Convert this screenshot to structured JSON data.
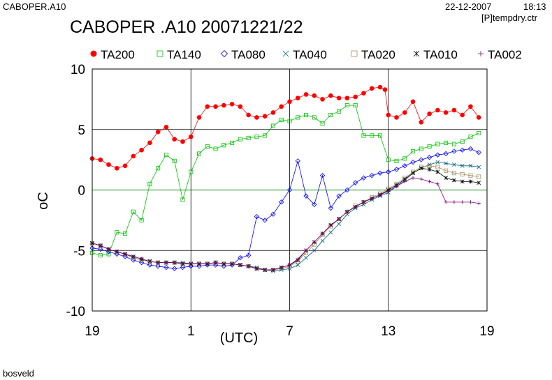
{
  "header": {
    "file": "CABOPER.A10",
    "date": "22-12-2007",
    "time": "18:13",
    "ctr": "[P]tempdry.ctr"
  },
  "footer": {
    "text": "bosveld"
  },
  "chart_data": {
    "type": "line",
    "title": "CABOPER .A10 20071221/22",
    "xlabel": "(UTC)",
    "ylabel": "oC",
    "ylim": [
      -10,
      10
    ],
    "yticks": [
      -10,
      -5,
      0,
      5,
      10
    ],
    "ytick_labels": [
      "-10",
      "-5",
      "0",
      "5",
      "10"
    ],
    "xlim": [
      0,
      24
    ],
    "xticks": [
      0,
      6,
      12,
      18,
      24
    ],
    "xtick_labels": [
      "19",
      "1",
      "7",
      "13",
      "19"
    ],
    "grid": true,
    "zero_line_color": "#008000",
    "legend_position": "top",
    "series": [
      {
        "name": "TA200",
        "color": "#ff0000",
        "marker": "filled-circle",
        "x": [
          0,
          0.5,
          1,
          1.5,
          2,
          2.5,
          3,
          3.5,
          4,
          4.5,
          5,
          5.5,
          6,
          6.5,
          7,
          7.5,
          8,
          8.5,
          9,
          9.5,
          10,
          10.5,
          11,
          11.5,
          12,
          12.5,
          13,
          13.5,
          14,
          14.5,
          15,
          15.5,
          16,
          16.5,
          17,
          17.5,
          17.8,
          18,
          18.5,
          19,
          19.5,
          20,
          20.5,
          21,
          21.5,
          22,
          22.5,
          23,
          23.5
        ],
        "y": [
          2.6,
          2.5,
          2.1,
          1.8,
          2.0,
          2.8,
          3.3,
          3.9,
          4.8,
          5.2,
          4.2,
          4.0,
          4.4,
          6.0,
          6.9,
          6.9,
          7.0,
          7.1,
          6.9,
          6.2,
          6.0,
          6.1,
          6.4,
          6.9,
          7.3,
          7.6,
          7.9,
          7.8,
          7.5,
          7.8,
          7.6,
          7.6,
          7.7,
          8.0,
          8.4,
          8.5,
          8.3,
          6.2,
          6.0,
          6.4,
          7.3,
          5.6,
          6.3,
          6.6,
          6.4,
          6.6,
          6.2,
          6.9,
          6.0
        ]
      },
      {
        "name": "TA140",
        "color": "#00c000",
        "marker": "open-square",
        "x": [
          0,
          0.5,
          1,
          1.5,
          2,
          2.5,
          3,
          3.5,
          4,
          4.5,
          5,
          5.5,
          6,
          6.5,
          7,
          7.5,
          8,
          8.5,
          9,
          9.5,
          10,
          10.5,
          11,
          11.5,
          12,
          12.5,
          13,
          13.5,
          14,
          14.5,
          15,
          15.5,
          16,
          16.5,
          17,
          17.5,
          18,
          18.5,
          19,
          19.5,
          20,
          20.5,
          21,
          21.5,
          22,
          22.5,
          23,
          23.5
        ],
        "y": [
          -5.2,
          -5.4,
          -5.3,
          -3.5,
          -3.6,
          -1.8,
          -2.5,
          0.5,
          1.8,
          2.9,
          2.4,
          -0.8,
          1.5,
          3.0,
          3.6,
          3.4,
          3.7,
          3.9,
          4.2,
          4.3,
          4.4,
          4.5,
          5.3,
          5.8,
          5.7,
          6.0,
          6.2,
          6.0,
          5.5,
          6.2,
          6.5,
          7.0,
          7.0,
          4.5,
          4.5,
          4.5,
          2.5,
          2.4,
          2.6,
          3.2,
          3.4,
          3.6,
          3.8,
          3.9,
          3.8,
          4.0,
          4.4,
          4.7
        ]
      },
      {
        "name": "TA080",
        "color": "#0000ff",
        "marker": "open-diamond",
        "x": [
          0,
          0.5,
          1,
          1.5,
          2,
          2.5,
          3,
          3.5,
          4,
          4.5,
          5,
          5.5,
          6,
          6.5,
          7,
          7.5,
          8,
          8.5,
          9,
          9.5,
          10,
          10.5,
          11,
          11.5,
          12,
          12.5,
          13,
          13.5,
          14,
          14.5,
          15,
          15.5,
          16,
          16.5,
          17,
          17.5,
          18,
          18.5,
          19,
          19.5,
          20,
          20.5,
          21,
          21.5,
          22,
          22.5,
          23,
          23.5
        ],
        "y": [
          -4.8,
          -4.9,
          -5.1,
          -5.3,
          -5.5,
          -5.8,
          -6.0,
          -6.2,
          -6.3,
          -6.4,
          -6.5,
          -6.4,
          -6.3,
          -6.3,
          -6.2,
          -6.2,
          -6.3,
          -6.2,
          -5.6,
          -5.4,
          -2.2,
          -2.5,
          -2.0,
          -1.0,
          0.0,
          2.4,
          -0.5,
          -1.2,
          1.2,
          -1.5,
          -0.5,
          0.0,
          0.6,
          1.0,
          1.2,
          1.4,
          1.5,
          1.7,
          2.0,
          2.3,
          2.5,
          2.7,
          2.9,
          3.0,
          3.2,
          3.3,
          3.4,
          3.1
        ]
      },
      {
        "name": "TA040",
        "color": "#006080",
        "marker": "x",
        "x": [
          0,
          0.5,
          1,
          1.5,
          2,
          2.5,
          3,
          3.5,
          4,
          4.5,
          5,
          5.5,
          6,
          6.5,
          7,
          7.5,
          8,
          8.5,
          9,
          9.5,
          10,
          10.5,
          11,
          11.5,
          12,
          12.5,
          13,
          13.5,
          14,
          14.5,
          15,
          15.5,
          16,
          16.5,
          17,
          17.5,
          18,
          18.5,
          19,
          19.5,
          20,
          20.5,
          21,
          21.5,
          22,
          22.5,
          23,
          23.5
        ],
        "y": [
          -4.4,
          -4.6,
          -4.9,
          -5.1,
          -5.3,
          -5.6,
          -5.8,
          -5.9,
          -6.0,
          -6.0,
          -6.0,
          -6.0,
          -6.1,
          -6.1,
          -6.1,
          -6.0,
          -6.1,
          -6.1,
          -6.2,
          -6.3,
          -6.4,
          -6.6,
          -6.7,
          -6.6,
          -6.5,
          -6.2,
          -5.6,
          -5.0,
          -4.2,
          -3.5,
          -2.8,
          -2.0,
          -1.5,
          -1.2,
          -0.8,
          -0.5,
          -0.2,
          0.3,
          0.8,
          1.4,
          1.8,
          2.1,
          2.3,
          2.2,
          2.1,
          2.0,
          2.0,
          1.9
        ]
      },
      {
        "name": "TA020",
        "color": "#a09060",
        "marker": "open-square",
        "x": [
          0,
          0.5,
          1,
          1.5,
          2,
          2.5,
          3,
          3.5,
          4,
          4.5,
          5,
          5.5,
          6,
          6.5,
          7,
          7.5,
          8,
          8.5,
          9,
          9.5,
          10,
          10.5,
          11,
          11.5,
          12,
          12.5,
          13,
          13.5,
          14,
          14.5,
          15,
          15.5,
          16,
          16.5,
          17,
          17.5,
          18,
          18.5,
          19,
          19.5,
          20,
          20.5,
          21,
          21.5,
          22,
          22.5,
          23,
          23.5
        ],
        "y": [
          -4.4,
          -4.6,
          -4.9,
          -5.1,
          -5.3,
          -5.6,
          -5.8,
          -5.9,
          -6.0,
          -6.0,
          -6.0,
          -6.1,
          -6.1,
          -6.1,
          -6.1,
          -6.0,
          -6.1,
          -6.1,
          -6.2,
          -6.3,
          -6.5,
          -6.6,
          -6.6,
          -6.5,
          -6.3,
          -5.9,
          -5.2,
          -4.5,
          -3.7,
          -3.0,
          -2.4,
          -1.8,
          -1.3,
          -1.0,
          -0.6,
          -0.3,
          0.1,
          0.5,
          1.0,
          1.5,
          1.9,
          2.0,
          1.9,
          1.6,
          1.4,
          1.3,
          1.2,
          1.1
        ]
      },
      {
        "name": "TA010",
        "color": "#000000",
        "marker": "asterisk",
        "x": [
          0,
          0.5,
          1,
          1.5,
          2,
          2.5,
          3,
          3.5,
          4,
          4.5,
          5,
          5.5,
          6,
          6.5,
          7,
          7.5,
          8,
          8.5,
          9,
          9.5,
          10,
          10.5,
          11,
          11.5,
          12,
          12.5,
          13,
          13.5,
          14,
          14.5,
          15,
          15.5,
          16,
          16.5,
          17,
          17.5,
          18,
          18.5,
          19,
          19.5,
          20,
          20.5,
          21,
          21.5,
          22,
          22.5,
          23,
          23.5
        ],
        "y": [
          -4.4,
          -4.6,
          -4.9,
          -5.1,
          -5.3,
          -5.5,
          -5.7,
          -5.9,
          -6.0,
          -6.0,
          -6.0,
          -6.1,
          -6.1,
          -6.1,
          -6.1,
          -6.0,
          -6.1,
          -6.1,
          -6.2,
          -6.3,
          -6.5,
          -6.6,
          -6.6,
          -6.4,
          -6.2,
          -5.8,
          -5.0,
          -4.3,
          -3.6,
          -2.9,
          -2.4,
          -1.8,
          -1.4,
          -1.0,
          -0.7,
          -0.4,
          0.0,
          0.4,
          0.9,
          1.4,
          1.8,
          1.7,
          1.5,
          1.0,
          0.8,
          0.7,
          0.7,
          0.6
        ]
      },
      {
        "name": "TA002",
        "color": "#800080",
        "marker": "plus",
        "x": [
          0,
          0.5,
          1,
          1.5,
          2,
          2.5,
          3,
          3.5,
          4,
          4.5,
          5,
          5.5,
          6,
          6.5,
          7,
          7.5,
          8,
          8.5,
          9,
          9.5,
          10,
          10.5,
          11,
          11.5,
          12,
          12.5,
          13,
          13.5,
          14,
          14.5,
          15,
          15.5,
          16,
          16.5,
          17,
          17.5,
          18,
          18.5,
          19,
          19.5,
          20,
          20.5,
          21,
          21.5,
          22,
          22.5,
          23,
          23.5
        ],
        "y": [
          -4.4,
          -4.6,
          -4.9,
          -5.1,
          -5.3,
          -5.5,
          -5.7,
          -5.9,
          -6.0,
          -6.0,
          -6.0,
          -6.1,
          -6.1,
          -6.1,
          -6.1,
          -6.0,
          -6.1,
          -6.1,
          -6.2,
          -6.3,
          -6.5,
          -6.6,
          -6.6,
          -6.4,
          -6.2,
          -5.7,
          -5.0,
          -4.3,
          -3.6,
          -2.9,
          -2.4,
          -1.8,
          -1.4,
          -1.0,
          -0.7,
          -0.4,
          -0.1,
          0.3,
          0.7,
          1.0,
          0.9,
          0.7,
          0.5,
          -1.0,
          -1.0,
          -1.0,
          -1.0,
          -1.1
        ]
      }
    ]
  }
}
